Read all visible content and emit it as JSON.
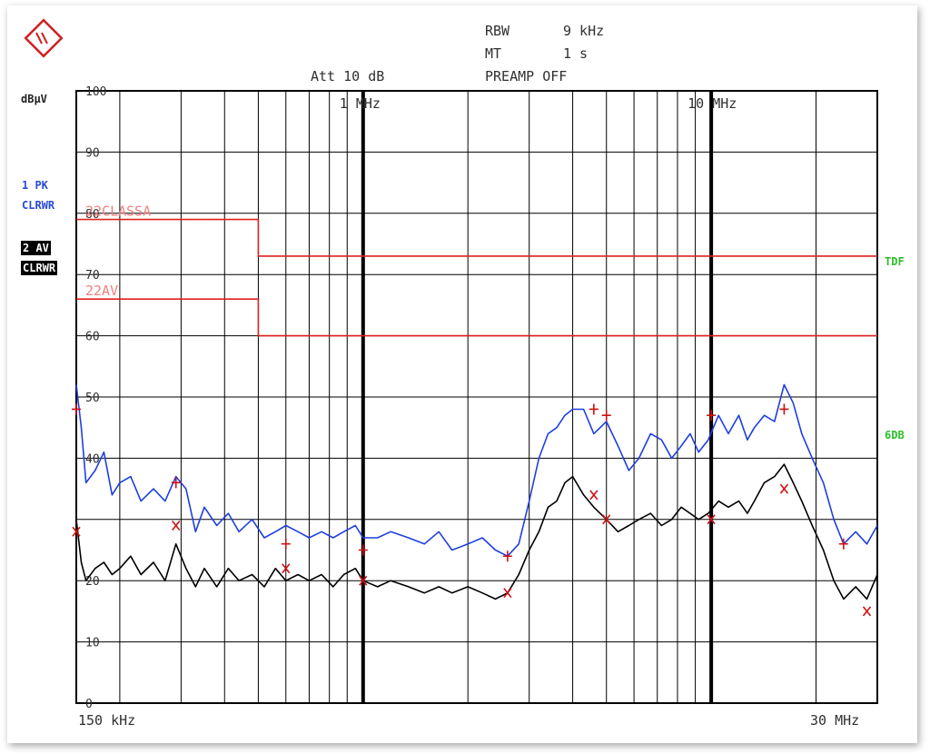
{
  "header": {
    "rbw_label": "RBW",
    "rbw_value": "9 kHz",
    "mt_label": "MT",
    "mt_value": "1 s",
    "preamp": "PREAMP OFF",
    "att": "Att 10 dB"
  },
  "side_labels": {
    "unit": "dBµV",
    "trace1_a": "1 PK",
    "trace1_b": "CLRWR",
    "trace2_a": "2 AV",
    "trace2_b": "CLRWR",
    "right_tdf": "TDF",
    "right_6db": "6DB"
  },
  "colors": {
    "peak_trace": "#1f3fe0",
    "avg_trace": "#000000",
    "limit_line": "#e02020",
    "limit_text": "#f08080",
    "marker": "#d01010",
    "side_blue": "#2a4ad8",
    "side_green": "#2cc02c"
  },
  "chart_data": {
    "type": "line",
    "x_scale": "log",
    "xlim_hz": [
      150000,
      30000000
    ],
    "x_start_label": "150 kHz",
    "x_end_label": "30 MHz",
    "decade_labels": [
      {
        "freq_hz": 1000000,
        "label": "1 MHz"
      },
      {
        "freq_hz": 10000000,
        "label": "10 MHz"
      }
    ],
    "ylabel": "dBµV",
    "ylim": [
      0,
      100
    ],
    "yticks": [
      0,
      10,
      20,
      30,
      40,
      50,
      60,
      70,
      80,
      90,
      100
    ],
    "ytick_labels": [
      "0",
      "10",
      "20",
      "",
      "40",
      "50",
      "60",
      "70",
      "80",
      "90",
      "100"
    ],
    "limits": [
      {
        "name": "22CLASSA",
        "points": [
          [
            150000,
            79
          ],
          [
            500000,
            79
          ],
          [
            500000,
            73
          ],
          [
            30000000,
            73
          ]
        ]
      },
      {
        "name": "22AV",
        "points": [
          [
            150000,
            66
          ],
          [
            500000,
            66
          ],
          [
            500000,
            60
          ],
          [
            30000000,
            60
          ]
        ]
      }
    ],
    "series": [
      {
        "x": [
          150000,
          155000,
          160000,
          170000,
          180000,
          190000,
          200000,
          215000,
          230000,
          250000,
          270000,
          290000,
          310000,
          330000,
          350000,
          380000,
          410000,
          440000,
          480000,
          520000,
          560000,
          600000,
          650000,
          700000,
          760000,
          820000,
          880000,
          950000,
          1000000,
          1100000,
          1200000,
          1350000,
          1500000,
          1650000,
          1800000,
          2000000,
          2200000,
          2400000,
          2600000,
          2800000,
          3000000,
          3200000,
          3400000,
          3600000,
          3800000,
          4000000,
          4300000,
          4600000,
          5000000,
          5400000,
          5800000,
          6200000,
          6700000,
          7200000,
          7700000,
          8200000,
          8700000,
          9200000,
          9800000,
          10500000,
          11200000,
          12000000,
          12700000,
          13300000,
          14200000,
          15200000,
          16200000,
          17200000,
          18200000,
          19500000,
          21000000,
          22500000,
          24000000,
          26000000,
          28000000,
          30000000
        ],
        "values": [
          52,
          45,
          36,
          38,
          41,
          34,
          36,
          37,
          33,
          35,
          33,
          37,
          35,
          28,
          32,
          29,
          31,
          28,
          30,
          27,
          28,
          29,
          28,
          27,
          28,
          27,
          28,
          29,
          27,
          27,
          28,
          27,
          26,
          28,
          25,
          26,
          27,
          25,
          24,
          26,
          33,
          40,
          44,
          45,
          47,
          48,
          48,
          44,
          46,
          42,
          38,
          40,
          44,
          43,
          40,
          42,
          44,
          41,
          43,
          47,
          44,
          47,
          43,
          45,
          47,
          46,
          52,
          49,
          44,
          40,
          36,
          30,
          26,
          28,
          26,
          29
        ],
        "markers": [
          [
            150000,
            48
          ],
          [
            290000,
            36
          ],
          [
            600000,
            26
          ],
          [
            1000000,
            25
          ],
          [
            2600000,
            24
          ],
          [
            4600000,
            48
          ],
          [
            5000000,
            47
          ],
          [
            10000000,
            47
          ],
          [
            16200000,
            48
          ],
          [
            24000000,
            26
          ]
        ]
      },
      {
        "x": [
          150000,
          155000,
          160000,
          170000,
          180000,
          190000,
          200000,
          215000,
          230000,
          250000,
          270000,
          290000,
          310000,
          330000,
          350000,
          380000,
          410000,
          440000,
          480000,
          520000,
          560000,
          600000,
          650000,
          700000,
          760000,
          820000,
          880000,
          950000,
          1000000,
          1100000,
          1200000,
          1350000,
          1500000,
          1650000,
          1800000,
          2000000,
          2200000,
          2400000,
          2600000,
          2800000,
          3000000,
          3200000,
          3400000,
          3600000,
          3800000,
          4000000,
          4300000,
          4600000,
          5000000,
          5400000,
          5800000,
          6200000,
          6700000,
          7200000,
          7700000,
          8200000,
          8700000,
          9200000,
          9800000,
          10500000,
          11200000,
          12000000,
          12700000,
          13300000,
          14200000,
          15200000,
          16200000,
          17200000,
          18200000,
          19500000,
          21000000,
          22500000,
          24000000,
          26000000,
          28000000,
          30000000
        ],
        "values": [
          30,
          23,
          20,
          22,
          23,
          21,
          22,
          24,
          21,
          23,
          20,
          26,
          22,
          19,
          22,
          19,
          22,
          20,
          21,
          19,
          22,
          20,
          21,
          20,
          21,
          19,
          21,
          22,
          20,
          19,
          20,
          19,
          18,
          19,
          18,
          19,
          18,
          17,
          18,
          21,
          25,
          28,
          32,
          33,
          36,
          37,
          34,
          32,
          30,
          28,
          29,
          30,
          31,
          29,
          30,
          32,
          31,
          30,
          31,
          33,
          32,
          33,
          31,
          33,
          36,
          37,
          39,
          36,
          33,
          29,
          25,
          20,
          17,
          19,
          17,
          21
        ],
        "markers": [
          [
            150000,
            28
          ],
          [
            290000,
            29
          ],
          [
            600000,
            22
          ],
          [
            1000000,
            20
          ],
          [
            2600000,
            18
          ],
          [
            4600000,
            34
          ],
          [
            5000000,
            30
          ],
          [
            10000000,
            30
          ],
          [
            16200000,
            35
          ],
          [
            28000000,
            15
          ]
        ]
      }
    ]
  }
}
